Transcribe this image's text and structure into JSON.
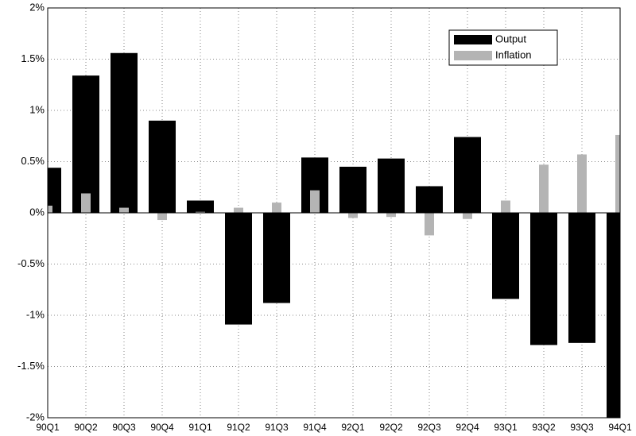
{
  "chart_data": {
    "type": "bar",
    "categories": [
      "90Q1",
      "90Q2",
      "90Q3",
      "90Q4",
      "91Q1",
      "91Q2",
      "91Q3",
      "91Q4",
      "92Q1",
      "92Q2",
      "92Q3",
      "92Q4",
      "93Q1",
      "93Q2",
      "93Q3",
      "94Q1"
    ],
    "series": [
      {
        "name": "Output",
        "color": "#000000",
        "values": [
          0.44,
          1.34,
          1.56,
          0.9,
          0.12,
          -1.09,
          -0.88,
          0.54,
          0.45,
          0.53,
          0.26,
          0.74,
          -0.84,
          -1.29,
          -1.27,
          -2.0
        ]
      },
      {
        "name": "Inflation",
        "color": "#b4b4b4",
        "values": [
          0.07,
          0.19,
          0.05,
          -0.07,
          0.01,
          0.05,
          0.1,
          0.22,
          -0.05,
          -0.04,
          -0.22,
          -0.06,
          0.12,
          0.47,
          0.57,
          0.76
        ]
      }
    ],
    "ylim": [
      -2,
      2
    ],
    "yticks": [
      {
        "value": -2,
        "label": "-2%"
      },
      {
        "value": -1.5,
        "label": "-1.5%"
      },
      {
        "value": -1,
        "label": "-1%"
      },
      {
        "value": -0.5,
        "label": "-0.5%"
      },
      {
        "value": 0,
        "label": "0%"
      },
      {
        "value": 0.5,
        "label": "0.5%"
      },
      {
        "value": 1,
        "label": "1%"
      },
      {
        "value": 1.5,
        "label": "1.5%"
      },
      {
        "value": 2,
        "label": "2%"
      }
    ],
    "grid": true,
    "legend": "upper right"
  }
}
